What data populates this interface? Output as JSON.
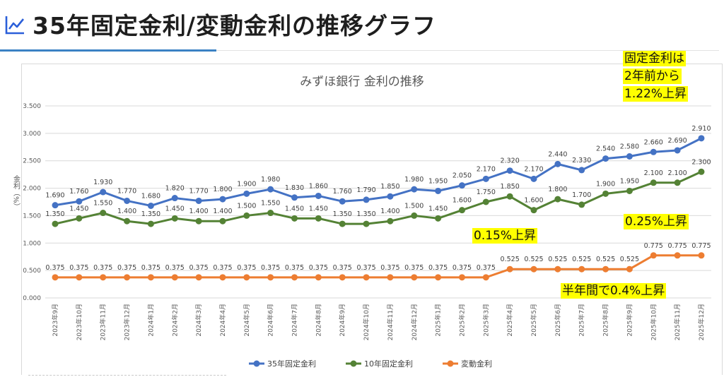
{
  "header": {
    "title": "35年固定金利/変動金利の推移グラフ",
    "icon": "trend-line-icon"
  },
  "colors": {
    "series35": "#4472c4",
    "series10": "#548235",
    "variable": "#ed7d31",
    "accent": "#3b82c4",
    "highlight": "#ffff00"
  },
  "callouts": {
    "fixed_line1": "固定金利は",
    "fixed_line2": "2年前から",
    "fixed_line3": "1.22%上昇",
    "ten_year": "0.25%上昇",
    "mid": "0.15%上昇",
    "variable": "半年間で0.4%上昇"
  },
  "chart_data": {
    "type": "line",
    "title": "みずほ銀行 金利の推移",
    "ylabel": "金利（%）",
    "ylim": [
      0,
      3.5
    ],
    "yticks": [
      "0.000",
      "0.500",
      "1.000",
      "1.500",
      "2.000",
      "2.500",
      "3.000",
      "3.500"
    ],
    "grid": true,
    "legend": "bottom",
    "categories": [
      "2023年9月",
      "2023年10月",
      "2023年11月",
      "2023年12月",
      "2024年1月",
      "2024年2月",
      "2024年3月",
      "2024年4月",
      "2024年5月",
      "2024年6月",
      "2024年7月",
      "2024年8月",
      "2024年9月",
      "2024年10月",
      "2024年11月",
      "2024年12月",
      "2025年1月",
      "2025年2月",
      "2025年3月",
      "2025年4月",
      "2025年5月",
      "2025年6月",
      "2025年7月",
      "2025年8月",
      "2025年9月",
      "2025年10月",
      "2025年11月",
      "2025年12月"
    ],
    "series": [
      {
        "name": "35年固定金利",
        "color": "#4472c4",
        "values": [
          1.69,
          1.76,
          1.93,
          1.77,
          1.68,
          1.82,
          1.77,
          1.8,
          1.9,
          1.98,
          1.83,
          1.86,
          1.76,
          1.79,
          1.85,
          1.98,
          1.95,
          2.05,
          2.17,
          2.32,
          2.17,
          2.44,
          2.33,
          2.54,
          2.58,
          2.66,
          2.69,
          2.91
        ]
      },
      {
        "name": "10年固定金利",
        "color": "#548235",
        "values": [
          1.35,
          1.45,
          1.55,
          1.4,
          1.35,
          1.45,
          1.4,
          1.4,
          1.5,
          1.55,
          1.45,
          1.45,
          1.35,
          1.35,
          1.4,
          1.5,
          1.45,
          1.6,
          1.75,
          1.85,
          1.6,
          1.8,
          1.7,
          1.9,
          1.95,
          2.1,
          2.1,
          2.3
        ]
      },
      {
        "name": "変動金利",
        "color": "#ed7d31",
        "values": [
          0.375,
          0.375,
          0.375,
          0.375,
          0.375,
          0.375,
          0.375,
          0.375,
          0.375,
          0.375,
          0.375,
          0.375,
          0.375,
          0.375,
          0.375,
          0.375,
          0.375,
          0.375,
          0.375,
          0.525,
          0.525,
          0.525,
          0.525,
          0.525,
          0.525,
          0.775,
          0.775,
          0.775
        ]
      }
    ]
  }
}
